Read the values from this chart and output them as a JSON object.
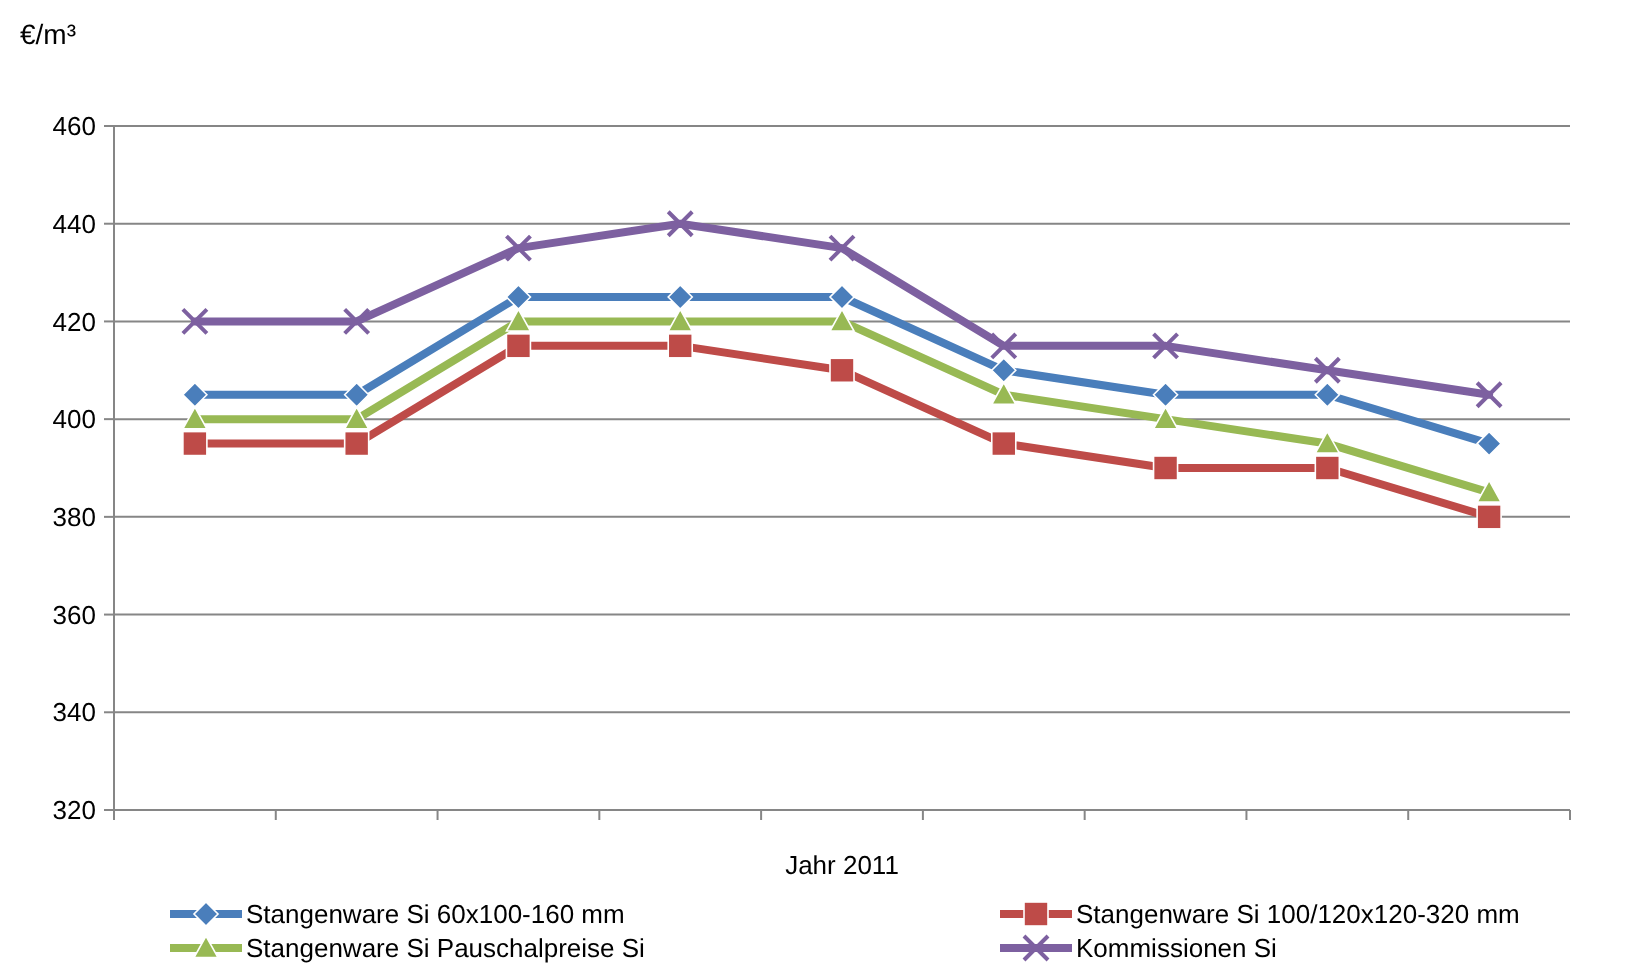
{
  "chart_data": {
    "type": "line",
    "ylabel": "€/m³",
    "xlabel": "Jahr 2011",
    "categories": [
      null,
      null,
      null,
      null,
      null,
      null,
      null,
      null,
      null
    ],
    "ylim": [
      320,
      460
    ],
    "yticks": [
      320,
      340,
      360,
      380,
      400,
      420,
      440,
      460
    ],
    "grid": "y",
    "legend": "bottom",
    "line_style": "solid",
    "series": [
      {
        "name": "Stangenware Si 60x100-160 mm",
        "color": "#4a7ebb",
        "marker": "diamond",
        "values": [
          405,
          405,
          425,
          425,
          425,
          410,
          405,
          405,
          395
        ]
      },
      {
        "name": "Stangenware Si 100/120x120-320 mm",
        "color": "#be4b48",
        "marker": "square",
        "values": [
          395,
          395,
          415,
          415,
          410,
          395,
          390,
          390,
          380
        ]
      },
      {
        "name": "Stangenware Si Pauschalpreise Si",
        "color": "#98b954",
        "marker": "triangle",
        "values": [
          400,
          400,
          420,
          420,
          420,
          405,
          400,
          395,
          385
        ]
      },
      {
        "name": "Kommissionen Si",
        "color": "#7d60a0",
        "marker": "cross",
        "values": [
          420,
          420,
          435,
          440,
          435,
          415,
          415,
          410,
          405
        ]
      }
    ]
  }
}
